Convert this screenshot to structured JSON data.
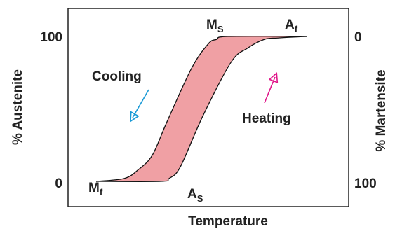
{
  "chart_data": {
    "type": "area",
    "title": "",
    "xlabel": "Temperature",
    "ylabel_left": "% Austenite",
    "ylabel_right": "% Martensite",
    "yleft_ticks": [
      "0",
      "100"
    ],
    "yright_ticks": [
      "100",
      "0"
    ],
    "ylim": [
      0,
      100
    ],
    "xlim": [
      0,
      100
    ],
    "grid": false,
    "series": [
      {
        "name": "Cooling",
        "direction": "down-left",
        "points": [
          [
            85,
            100
          ],
          [
            57,
            100
          ],
          [
            53,
            98
          ],
          [
            50,
            95
          ],
          [
            44,
            78
          ],
          [
            35,
            40
          ],
          [
            30,
            18
          ],
          [
            25,
            8
          ],
          [
            20,
            2
          ],
          [
            10,
            0
          ]
        ],
        "color": "#1a9ad6"
      },
      {
        "name": "Heating",
        "direction": "up-right",
        "points": [
          [
            10,
            0
          ],
          [
            33,
            0
          ],
          [
            36,
            2
          ],
          [
            40,
            10
          ],
          [
            48,
            45
          ],
          [
            58,
            82
          ],
          [
            64,
            92
          ],
          [
            70,
            98
          ],
          [
            75,
            99
          ],
          [
            85,
            100
          ]
        ]
      }
    ],
    "series_colors": {
      "Heating": "#e0168a"
    },
    "hysteresis_fill": "#f0a0a4",
    "points": [
      {
        "base": "M",
        "sub": "S"
      },
      {
        "base": "A",
        "sub": "f"
      },
      {
        "base": "M",
        "sub": "f"
      },
      {
        "base": "A",
        "sub": "S"
      }
    ]
  }
}
